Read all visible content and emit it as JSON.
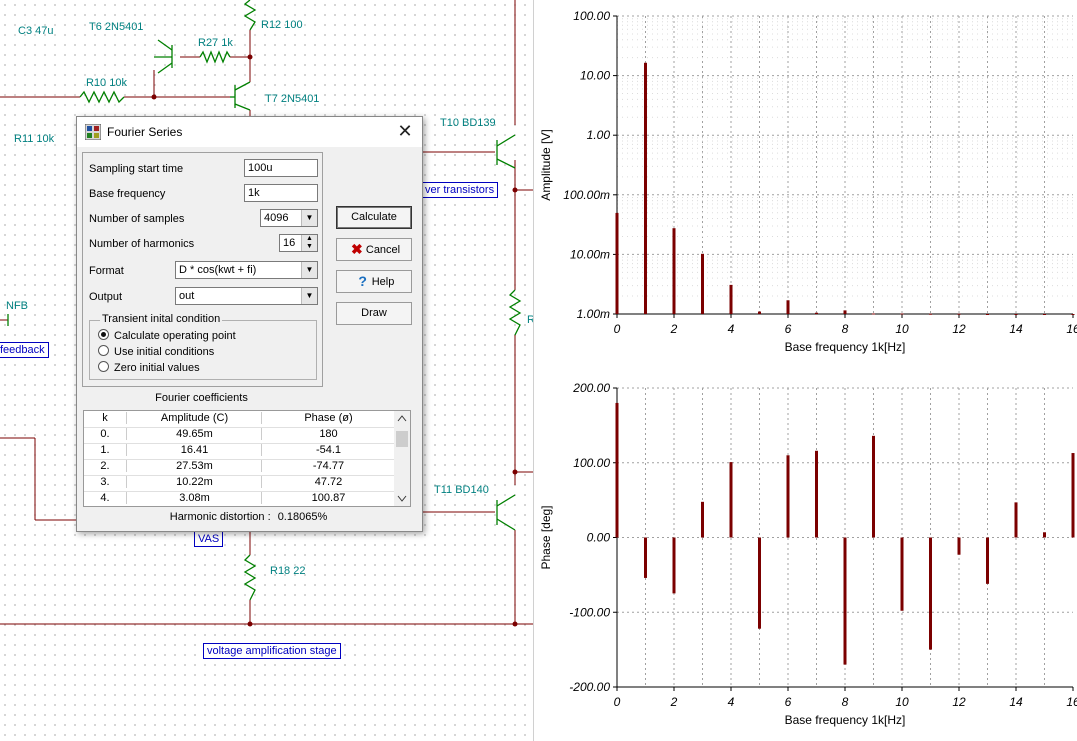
{
  "schematic": {
    "labels": [
      "C3 47u",
      "T6 2N5401",
      "R12 100",
      "R27 1k",
      "R10 10k",
      "T7 2N5401",
      "R11 10k",
      "T10 BD139",
      "NFB",
      "T11 BD140",
      "R18 22",
      "R"
    ],
    "nets": [
      "ver transistors",
      "feedback",
      "VAS",
      "voltage amplification stage"
    ]
  },
  "dialog": {
    "title": "Fourier Series",
    "close": "✕",
    "fields": {
      "sampling_start_label": "Sampling start time",
      "sampling_start_value": "100u",
      "base_freq_label": "Base frequency",
      "base_freq_value": "1k",
      "samples_label": "Number of samples",
      "samples_value": "4096",
      "harmonics_label": "Number of harmonics",
      "harmonics_value": "16",
      "format_label": "Format",
      "format_value": "D * cos(kwt + fi)",
      "output_label": "Output",
      "output_value": "out"
    },
    "transient": {
      "legend": "Transient inital condition",
      "options": [
        "Calculate operating point",
        "Use initial conditions",
        "Zero initial values"
      ],
      "selected": 0
    },
    "buttons": {
      "calculate": "Calculate",
      "cancel": "Cancel",
      "help": "Help",
      "draw": "Draw"
    },
    "coefficients": {
      "title": "Fourier coefficients",
      "headers": [
        "k",
        "Amplitude (C)",
        "Phase (ø)"
      ],
      "rows": [
        [
          "0.",
          "49.65m",
          "180"
        ],
        [
          "1.",
          "16.41",
          "-54.1"
        ],
        [
          "2.",
          "27.53m",
          "-74.77"
        ],
        [
          "3.",
          "10.22m",
          "47.72"
        ],
        [
          "4.",
          "3.08m",
          "100.87"
        ]
      ]
    },
    "distortion_label": "Harmonic distortion :",
    "distortion_value": "0.18065%"
  },
  "colors": {
    "bar": "#7b0000",
    "grid": "#a0a0a0",
    "net_text": "#0000c0",
    "component_text": "#008080"
  },
  "chart_data": [
    {
      "type": "bar",
      "scale": "log",
      "xlabel": "Base frequency 1k[Hz]",
      "ylabel": "Amplitude [V]",
      "ytick_labels": [
        "100.00",
        "10.00",
        "1.00",
        "100.00m",
        "10.00m",
        "1.00m"
      ],
      "ytick_values": [
        100,
        10,
        1,
        0.1,
        0.01,
        0.001
      ],
      "ylim": [
        0.001,
        100
      ],
      "xlim": [
        0,
        16
      ],
      "xtick_labels": [
        "0",
        "2",
        "4",
        "6",
        "8",
        "10",
        "12",
        "14",
        "16"
      ],
      "x": [
        0,
        1,
        2,
        3,
        4,
        5,
        6,
        7,
        8,
        9,
        10,
        11,
        12,
        13,
        14,
        15,
        16
      ],
      "values": [
        0.04965,
        16.41,
        0.02753,
        0.01022,
        0.00308,
        0.0011,
        0.0017,
        0.00105,
        0.00115,
        0.00102,
        0.00102,
        0.00101,
        0.00101,
        0.001,
        0.001,
        0.001,
        0.001
      ]
    },
    {
      "type": "bar",
      "xlabel": "Base frequency 1k[Hz]",
      "ylabel": "Phase [deg]",
      "ytick_labels": [
        "200.00",
        "100.00",
        "0.00",
        "-100.00",
        "-200.00"
      ],
      "ytick_values": [
        200,
        100,
        0,
        -100,
        -200
      ],
      "ylim": [
        -200,
        200
      ],
      "xlim": [
        0,
        16
      ],
      "xtick_labels": [
        "0",
        "2",
        "4",
        "6",
        "8",
        "10",
        "12",
        "14",
        "16"
      ],
      "x": [
        0,
        1,
        2,
        3,
        4,
        5,
        6,
        7,
        8,
        9,
        10,
        11,
        12,
        13,
        14,
        15,
        16
      ],
      "values": [
        180,
        -54.1,
        -74.77,
        47.72,
        100.87,
        -122,
        110,
        116,
        -170,
        136,
        -98,
        -150,
        -23,
        -62,
        47,
        7,
        113
      ]
    }
  ]
}
